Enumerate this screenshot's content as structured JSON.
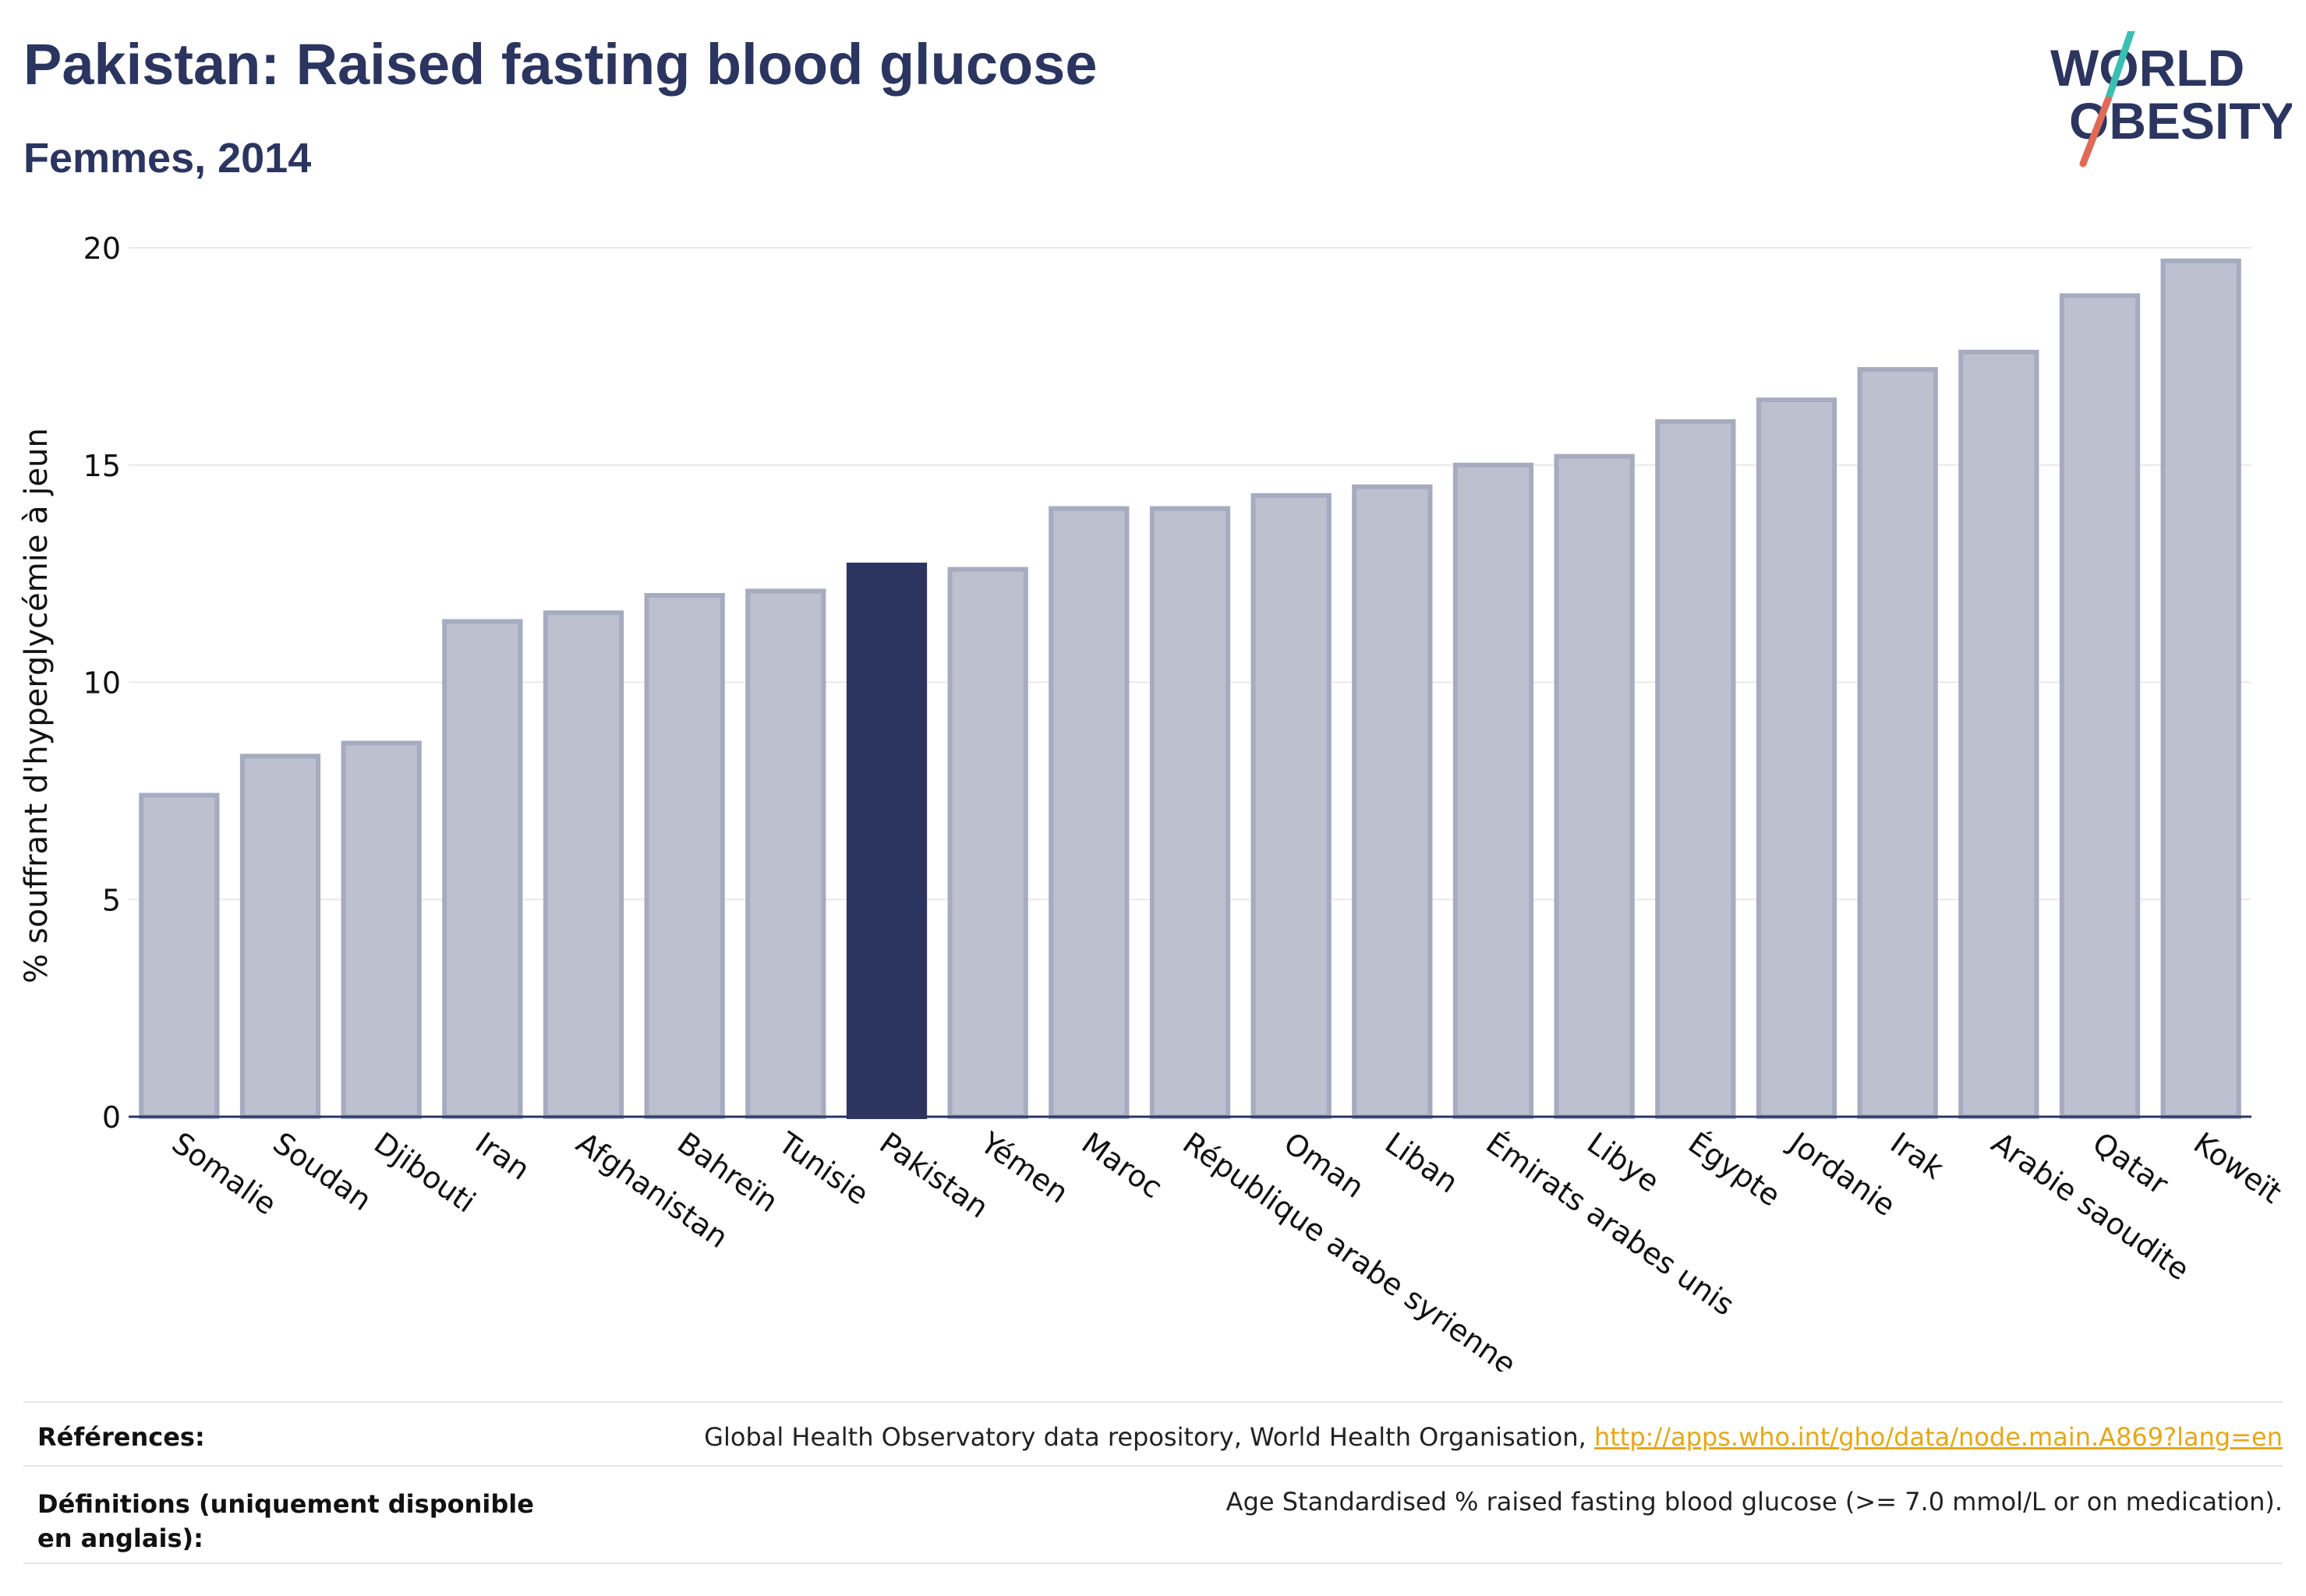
{
  "header": {
    "title": "Pakistan: Raised fasting blood glucose",
    "subtitle": "Femmes, 2014",
    "logo_text_line1": "WORLD",
    "logo_text_line2": "OBESITY"
  },
  "colors": {
    "bar": "#bcc0cf",
    "bar_border": "#a6abc0",
    "highlight": "#2b3560",
    "title": "#2b3560",
    "logo_teal": "#3bbfb3",
    "logo_red": "#e06a58",
    "link": "#e3a81a"
  },
  "chart_data": {
    "type": "bar",
    "ylabel": "% souffrant d'hyperglycémie à jeun",
    "ylim": [
      0,
      20
    ],
    "yticks": [
      0,
      5,
      10,
      15,
      20
    ],
    "grid": true,
    "highlight_category": "Pakistan",
    "categories": [
      "Somalie",
      "Soudan",
      "Djibouti",
      "Iran",
      "Afghanistan",
      "Bahreïn",
      "Tunisie",
      "Pakistan",
      "Yémen",
      "Maroc",
      "République arabe syrienne",
      "Oman",
      "Liban",
      "Émirats arabes unis",
      "Libye",
      "Égypte",
      "Jordanie",
      "Irak",
      "Arabie saoudite",
      "Qatar",
      "Koweït"
    ],
    "values": [
      7.4,
      8.3,
      8.6,
      11.4,
      11.6,
      12.0,
      12.1,
      12.7,
      12.6,
      14.0,
      14.0,
      14.3,
      14.5,
      15.0,
      15.2,
      16.0,
      16.5,
      17.2,
      17.6,
      18.9,
      19.7
    ]
  },
  "footer": {
    "references_label": "Références:",
    "references_text": "Global Health Observatory data repository, World Health Organisation, ",
    "references_link": "http://apps.who.int/gho/data/node.main.A869?lang=en",
    "definitions_label": "Définitions (uniquement disponible en anglais):",
    "definitions_text": "Age Standardised % raised fasting blood glucose (>= 7.0 mmol/L or on medication)."
  }
}
